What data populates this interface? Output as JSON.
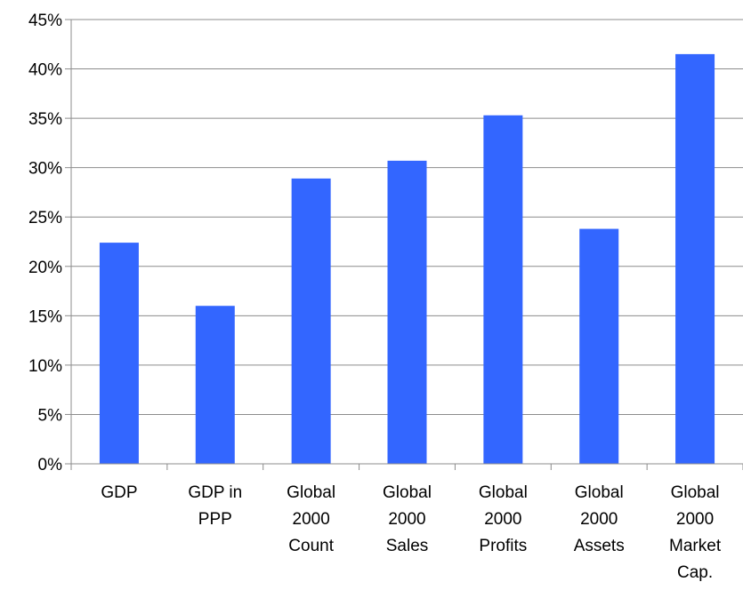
{
  "chart_data": {
    "type": "bar",
    "title": "",
    "xlabel": "",
    "ylabel": "",
    "ylim": [
      0,
      45
    ],
    "y_tick_step": 5,
    "y_tick_labels": [
      "0%",
      "5%",
      "10%",
      "15%",
      "20%",
      "25%",
      "30%",
      "35%",
      "40%",
      "45%"
    ],
    "grid": true,
    "legend": "none",
    "bar_color": "#3366FF",
    "categories": [
      [
        "GDP"
      ],
      [
        "GDP in",
        "PPP"
      ],
      [
        "Global",
        "2000",
        "Count"
      ],
      [
        "Global",
        "2000",
        "Sales"
      ],
      [
        "Global",
        "2000",
        "Profits"
      ],
      [
        "Global",
        "2000",
        "Assets"
      ],
      [
        "Global",
        "2000",
        "Market",
        "Cap."
      ]
    ],
    "values": [
      22.4,
      16.0,
      28.9,
      30.7,
      35.3,
      23.8,
      41.5
    ]
  }
}
